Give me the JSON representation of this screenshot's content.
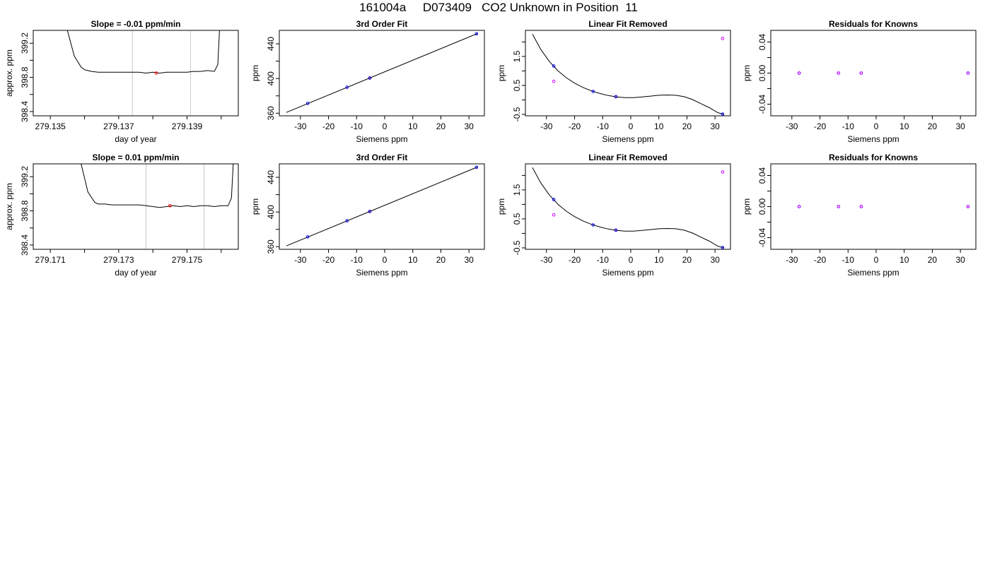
{
  "figure": {
    "title": "161004a     D073409   CO2 Unknown in Position  11"
  },
  "chart_data": [
    {
      "type": "line",
      "title": "Slope =  -0.01  ppm/min",
      "xlabel": "day of year",
      "ylabel": "approx. ppm",
      "xlim": [
        279.1345,
        279.1405
      ],
      "ylim": [
        398.35,
        399.35
      ],
      "xticks": [
        279.135,
        279.136,
        279.137,
        279.138,
        279.139,
        279.14
      ],
      "xtick_labels": [
        "279.135",
        "",
        "279.137",
        "",
        "279.139",
        ""
      ],
      "yticks": [
        398.4,
        398.6,
        398.8,
        399.0,
        399.2
      ],
      "ytick_labels": [
        "398.4",
        "",
        "398.8",
        "",
        "399.2"
      ],
      "vlines": [
        279.1374,
        279.1391
      ],
      "series": [
        {
          "color": "#000000",
          "x": [
            279.1355,
            279.1357,
            279.1359,
            279.136,
            279.1362,
            279.1364,
            279.1366,
            279.1368,
            279.137,
            279.1372,
            279.1374,
            279.1376,
            279.1378,
            279.138,
            279.1382,
            279.1384,
            279.1386,
            279.1388,
            279.139,
            279.1392,
            279.1394,
            279.1396,
            279.1398,
            279.1399,
            279.13995
          ],
          "y": [
            399.35,
            399.05,
            398.92,
            398.89,
            398.87,
            398.86,
            398.86,
            398.86,
            398.86,
            398.86,
            398.86,
            398.86,
            398.85,
            398.86,
            398.85,
            398.86,
            398.86,
            398.86,
            398.86,
            398.87,
            398.87,
            398.88,
            398.87,
            398.95,
            399.35
          ]
        }
      ],
      "points": [
        {
          "x": 279.1381,
          "y": 398.85,
          "color": "#ff0000"
        }
      ]
    },
    {
      "type": "scatter",
      "title": "3rd Order Fit",
      "xlabel": "Siemens ppm",
      "ylabel": "ppm",
      "xlim": [
        -37.5,
        35.5
      ],
      "ylim": [
        357.0,
        455.5
      ],
      "xticks": [
        -30,
        -20,
        -10,
        0,
        10,
        20,
        30
      ],
      "xtick_labels": [
        "-30",
        "-20",
        "-10",
        "0",
        "10",
        "20",
        "30"
      ],
      "yticks": [
        360,
        380,
        400,
        420,
        440
      ],
      "ytick_labels": [
        "360",
        "",
        "400",
        "",
        "440"
      ],
      "series": [
        {
          "color": "#000000",
          "x": [
            -35,
            33
          ],
          "y": [
            360.9,
            451.8
          ]
        }
      ],
      "points": [
        {
          "x": -27.4,
          "y": 371.3,
          "color": "#0000ff"
        },
        {
          "x": -13.4,
          "y": 389.9,
          "color": "#0000ff"
        },
        {
          "x": -5.3,
          "y": 400.6,
          "color": "#ff0000"
        },
        {
          "x": -5.3,
          "y": 400.6,
          "color": "#0000ff"
        },
        {
          "x": 32.7,
          "y": 451.5,
          "color": "#0000ff"
        }
      ]
    },
    {
      "type": "scatter",
      "title": "Linear Fit Removed",
      "xlabel": "Siemens ppm",
      "ylabel": "ppm",
      "xlim": [
        -37.5,
        35.5
      ],
      "ylim": [
        -0.55,
        2.4
      ],
      "xticks": [
        -30,
        -20,
        -10,
        0,
        10,
        20,
        30
      ],
      "xtick_labels": [
        "-30",
        "-20",
        "-10",
        "0",
        "10",
        "20",
        "30"
      ],
      "yticks": [
        -0.5,
        0.0,
        0.5,
        1.0,
        1.5,
        2.0
      ],
      "ytick_labels": [
        "-0.5",
        "",
        "0.5",
        "",
        "1.5",
        ""
      ],
      "series": [
        {
          "color": "#000000",
          "x": [
            -35,
            -32,
            -29,
            -26,
            -23,
            -20,
            -17,
            -14,
            -11,
            -8,
            -5,
            -2,
            1,
            4,
            7,
            10,
            13,
            16,
            19,
            22,
            25,
            28,
            31,
            33
          ],
          "y": [
            2.27,
            1.74,
            1.33,
            1.01,
            0.77,
            0.58,
            0.43,
            0.31,
            0.22,
            0.15,
            0.1,
            0.08,
            0.08,
            0.1,
            0.13,
            0.16,
            0.17,
            0.16,
            0.11,
            0.01,
            -0.13,
            -0.27,
            -0.44,
            -0.5
          ]
        }
      ],
      "points": [
        {
          "x": -27.4,
          "y": 1.17,
          "color": "#0000ff"
        },
        {
          "x": -27.4,
          "y": 0.64,
          "color": "#cc00ff"
        },
        {
          "x": -13.4,
          "y": 0.29,
          "color": "#0000ff"
        },
        {
          "x": -5.3,
          "y": 0.11,
          "color": "#ff0000"
        },
        {
          "x": -5.3,
          "y": 0.11,
          "color": "#0000ff"
        },
        {
          "x": 32.7,
          "y": 2.12,
          "color": "#cc00ff"
        },
        {
          "x": 32.7,
          "y": -0.49,
          "color": "#0000ff"
        }
      ]
    },
    {
      "type": "scatter",
      "title": "Residuals for Knowns",
      "xlabel": "Siemens ppm",
      "ylabel": "ppm",
      "xlim": [
        -37.5,
        35.5
      ],
      "ylim": [
        -0.055,
        0.055
      ],
      "xticks": [
        -30,
        -20,
        -10,
        0,
        10,
        20,
        30
      ],
      "xtick_labels": [
        "-30",
        "-20",
        "-10",
        "0",
        "10",
        "20",
        "30"
      ],
      "yticks": [
        -0.04,
        -0.02,
        0.0,
        0.02,
        0.04
      ],
      "ytick_labels": [
        "-0.04",
        "",
        "0.00",
        "",
        "0.04"
      ],
      "series": [],
      "points": [
        {
          "x": -27.4,
          "y": 0.0,
          "color": "#0000ff"
        },
        {
          "x": -27.4,
          "y": 0.0,
          "color": "#cc00ff"
        },
        {
          "x": -13.4,
          "y": 0.0,
          "color": "#0000ff"
        },
        {
          "x": -13.4,
          "y": 0.0,
          "color": "#cc00ff"
        },
        {
          "x": -5.3,
          "y": 0.0,
          "color": "#0000ff"
        },
        {
          "x": -5.3,
          "y": 0.0,
          "color": "#cc00ff"
        },
        {
          "x": 32.7,
          "y": 0.0,
          "color": "#0000ff"
        },
        {
          "x": 32.7,
          "y": 0.0,
          "color": "#cc00ff"
        }
      ]
    },
    {
      "type": "line",
      "title": "Slope =  0.01  ppm/min",
      "xlabel": "day of year",
      "ylabel": "approx. ppm",
      "xlim": [
        279.1705,
        279.1765
      ],
      "ylim": [
        398.35,
        399.35
      ],
      "xticks": [
        279.171,
        279.172,
        279.173,
        279.174,
        279.175,
        279.176
      ],
      "xtick_labels": [
        "279.171",
        "",
        "279.173",
        "",
        "279.175",
        ""
      ],
      "yticks": [
        398.4,
        398.6,
        398.8,
        399.0,
        399.2
      ],
      "ytick_labels": [
        "398.4",
        "",
        "398.8",
        "",
        "399.2"
      ],
      "vlines": [
        279.1738,
        279.1755
      ],
      "series": [
        {
          "color": "#000000",
          "x": [
            279.1719,
            279.1721,
            279.1723,
            279.1724,
            279.1726,
            279.1728,
            279.173,
            279.1732,
            279.1734,
            279.1736,
            279.1738,
            279.174,
            279.1742,
            279.1744,
            279.1746,
            279.1748,
            279.175,
            279.1752,
            279.1754,
            279.1756,
            279.1758,
            279.176,
            279.1762,
            279.1763,
            279.17635
          ],
          "y": [
            399.35,
            399.02,
            398.9,
            398.88,
            398.88,
            398.87,
            398.87,
            398.87,
            398.87,
            398.87,
            398.86,
            398.85,
            398.84,
            398.85,
            398.86,
            398.85,
            398.86,
            398.85,
            398.86,
            398.86,
            398.85,
            398.86,
            398.86,
            398.95,
            399.35
          ]
        }
      ],
      "points": [
        {
          "x": 279.1745,
          "y": 398.86,
          "color": "#ff0000"
        }
      ]
    },
    {
      "type": "scatter",
      "title": "3rd Order Fit",
      "xlabel": "Siemens ppm",
      "ylabel": "ppm",
      "xlim": [
        -37.5,
        35.5
      ],
      "ylim": [
        357.0,
        455.5
      ],
      "xticks": [
        -30,
        -20,
        -10,
        0,
        10,
        20,
        30
      ],
      "xtick_labels": [
        "-30",
        "-20",
        "-10",
        "0",
        "10",
        "20",
        "30"
      ],
      "yticks": [
        360,
        380,
        400,
        420,
        440
      ],
      "ytick_labels": [
        "360",
        "",
        "400",
        "",
        "440"
      ],
      "series": [
        {
          "color": "#000000",
          "x": [
            -35,
            33
          ],
          "y": [
            360.9,
            451.8
          ]
        }
      ],
      "points": [
        {
          "x": -27.4,
          "y": 371.3,
          "color": "#0000ff"
        },
        {
          "x": -13.4,
          "y": 389.9,
          "color": "#0000ff"
        },
        {
          "x": -5.3,
          "y": 400.6,
          "color": "#ff0000"
        },
        {
          "x": -5.3,
          "y": 400.6,
          "color": "#0000ff"
        },
        {
          "x": 32.7,
          "y": 451.5,
          "color": "#0000ff"
        }
      ]
    },
    {
      "type": "scatter",
      "title": "Linear Fit Removed",
      "xlabel": "Siemens ppm",
      "ylabel": "ppm",
      "xlim": [
        -37.5,
        35.5
      ],
      "ylim": [
        -0.55,
        2.4
      ],
      "xticks": [
        -30,
        -20,
        -10,
        0,
        10,
        20,
        30
      ],
      "xtick_labels": [
        "-30",
        "-20",
        "-10",
        "0",
        "10",
        "20",
        "30"
      ],
      "yticks": [
        -0.5,
        0.0,
        0.5,
        1.0,
        1.5,
        2.0
      ],
      "ytick_labels": [
        "-0.5",
        "",
        "0.5",
        "",
        "1.5",
        ""
      ],
      "series": [
        {
          "color": "#000000",
          "x": [
            -35,
            -32,
            -29,
            -26,
            -23,
            -20,
            -17,
            -14,
            -11,
            -8,
            -5,
            -2,
            1,
            4,
            7,
            10,
            13,
            16,
            19,
            22,
            25,
            28,
            31,
            33
          ],
          "y": [
            2.27,
            1.74,
            1.33,
            1.01,
            0.77,
            0.58,
            0.43,
            0.31,
            0.22,
            0.15,
            0.1,
            0.08,
            0.08,
            0.1,
            0.13,
            0.16,
            0.17,
            0.16,
            0.11,
            0.01,
            -0.13,
            -0.27,
            -0.44,
            -0.5
          ]
        }
      ],
      "points": [
        {
          "x": -27.4,
          "y": 1.17,
          "color": "#0000ff"
        },
        {
          "x": -27.4,
          "y": 0.64,
          "color": "#cc00ff"
        },
        {
          "x": -13.4,
          "y": 0.29,
          "color": "#0000ff"
        },
        {
          "x": -5.3,
          "y": 0.11,
          "color": "#ff0000"
        },
        {
          "x": -5.3,
          "y": 0.11,
          "color": "#0000ff"
        },
        {
          "x": 32.7,
          "y": 2.12,
          "color": "#cc00ff"
        },
        {
          "x": 32.7,
          "y": -0.49,
          "color": "#0000ff"
        }
      ]
    },
    {
      "type": "scatter",
      "title": "Residuals for Knowns",
      "xlabel": "Siemens ppm",
      "ylabel": "ppm",
      "xlim": [
        -37.5,
        35.5
      ],
      "ylim": [
        -0.055,
        0.055
      ],
      "xticks": [
        -30,
        -20,
        -10,
        0,
        10,
        20,
        30
      ],
      "xtick_labels": [
        "-30",
        "-20",
        "-10",
        "0",
        "10",
        "20",
        "30"
      ],
      "yticks": [
        -0.04,
        -0.02,
        0.0,
        0.02,
        0.04
      ],
      "ytick_labels": [
        "-0.04",
        "",
        "0.00",
        "",
        "0.04"
      ],
      "series": [],
      "points": [
        {
          "x": -27.4,
          "y": 0.0,
          "color": "#0000ff"
        },
        {
          "x": -27.4,
          "y": 0.0,
          "color": "#cc00ff"
        },
        {
          "x": -13.4,
          "y": 0.0,
          "color": "#0000ff"
        },
        {
          "x": -13.4,
          "y": 0.0,
          "color": "#cc00ff"
        },
        {
          "x": -5.3,
          "y": 0.0,
          "color": "#0000ff"
        },
        {
          "x": -5.3,
          "y": 0.0,
          "color": "#cc00ff"
        },
        {
          "x": 32.7,
          "y": 0.0,
          "color": "#0000ff"
        },
        {
          "x": 32.7,
          "y": 0.0,
          "color": "#cc00ff"
        }
      ]
    }
  ]
}
